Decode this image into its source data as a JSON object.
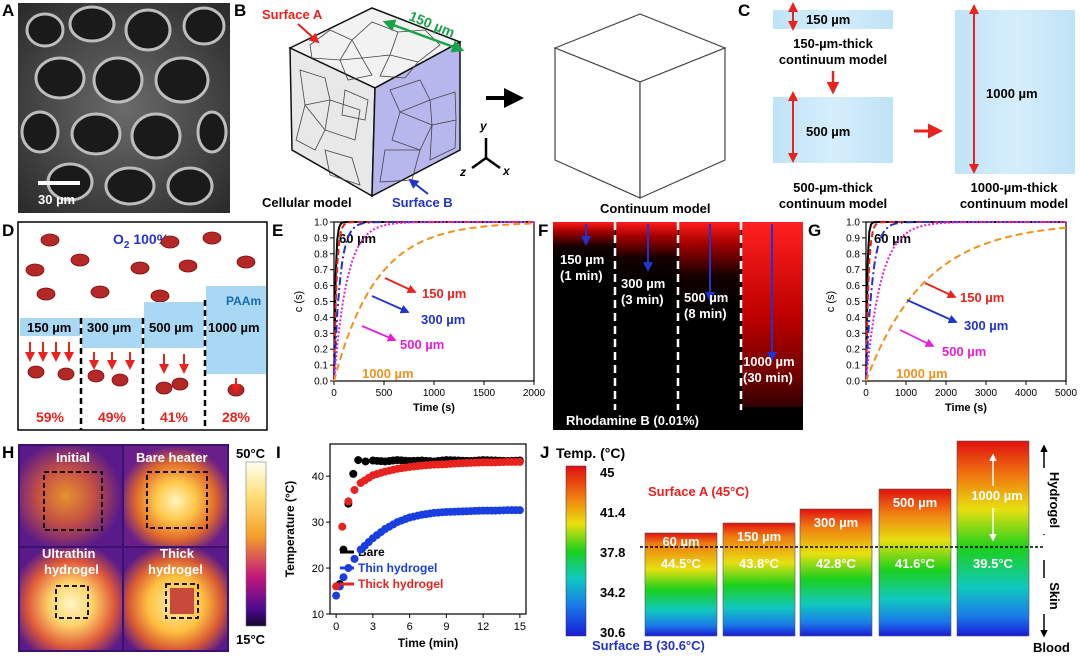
{
  "panels": {
    "A": {
      "letter": "A",
      "scale_bar": "30 µm"
    },
    "B": {
      "letter": "B",
      "surface_a": "Surface A",
      "surface_b": "Surface B",
      "dimension": "150 µm",
      "axis_y": "y",
      "axis_x": "x",
      "axis_z": "z",
      "cellular_label": "Cellular model",
      "continuum_label": "Continuum model"
    },
    "C": {
      "letter": "C",
      "thin_dim": "150 µm",
      "thin_label_1": "150-µm-thick",
      "thin_label_2": "continuum model",
      "mid_dim": "500 µm",
      "mid_label_1": "500-µm-thick",
      "mid_label_2": "continuum model",
      "thick_dim": "1000 µm",
      "thick_label_1": "1000-µm-thick",
      "thick_label_2": "continuum model"
    },
    "D": {
      "letter": "D",
      "o2_prefix": "O",
      "o2_sub": "2",
      "o2_suffix": " 100%",
      "paam": "PAAm",
      "layers": [
        "150 µm",
        "300 µm",
        "500 µm",
        "1000 µm"
      ],
      "percents": [
        "59%",
        "49%",
        "41%",
        "28%"
      ]
    },
    "F": {
      "letter": "F",
      "stains": [
        [
          "150 µm",
          "(1 min)"
        ],
        [
          "300 µm",
          "(3 min)"
        ],
        [
          "500 µm",
          "(8 min)"
        ],
        [
          "1000 µm",
          "(30 min)"
        ]
      ],
      "caption": "Rhodamine B (0.01%)"
    },
    "H": {
      "letter": "H",
      "initial": "Initial",
      "bare_heater": "Bare heater",
      "ultrathin_1": "Ultrathin",
      "ultrathin_2": "hydrogel",
      "thick_1": "Thick",
      "thick_2": "hydrogel",
      "scale_max": "50°C",
      "scale_min": "15°C"
    },
    "J": {
      "letter": "J",
      "temp_title": "Temp. (°C)",
      "scale_ticks": [
        "45",
        "41.4",
        "37.8",
        "34.2",
        "30.6"
      ],
      "surface_a": "Surface A (45°C)",
      "surface_b": "Surface B (30.6°C)",
      "bars": [
        {
          "thickness": "60 µm",
          "temp": "44.5°C"
        },
        {
          "thickness": "150 µm",
          "temp": "43.8°C"
        },
        {
          "thickness": "300 µm",
          "temp": "42.8°C"
        },
        {
          "thickness": "500 µm",
          "temp": "41.6°C"
        },
        {
          "thickness": "1000 µm",
          "temp": "39.5°C"
        }
      ],
      "hydrogel": "Hydrogel",
      "skin": "Skin",
      "blood": "Blood"
    }
  },
  "chart_data": [
    {
      "id": "E",
      "type": "line",
      "title": "",
      "xlabel": "Time (s)",
      "ylabel": "c (s)",
      "xlim": [
        0,
        2000
      ],
      "ylim": [
        0,
        1.0
      ],
      "xticks": [
        "0",
        "500",
        "1000",
        "1500",
        "2000"
      ],
      "yticks": [
        "0.0",
        "0.1",
        "0.2",
        "0.3",
        "0.4",
        "0.5",
        "0.6",
        "0.7",
        "0.8",
        "0.9",
        "1.0"
      ],
      "series": [
        {
          "name": "60 µm",
          "color": "#000000",
          "tau": 15
        },
        {
          "name": "150 µm",
          "color": "#e8231e",
          "tau": 25
        },
        {
          "name": "300 µm",
          "color": "#2233cc",
          "tau": 60
        },
        {
          "name": "500 µm",
          "color": "#e61fd6",
          "tau": 130
        },
        {
          "name": "1000 µm",
          "color": "#f0921e",
          "tau": 420
        }
      ]
    },
    {
      "id": "G",
      "type": "line",
      "title": "",
      "xlabel": "Time (s)",
      "ylabel": "c (s)",
      "xlim": [
        0,
        5000
      ],
      "ylim": [
        0,
        1.0
      ],
      "xticks": [
        "0",
        "1000",
        "2000",
        "3000",
        "4000",
        "5000"
      ],
      "yticks": [
        "0.0",
        "0.1",
        "0.2",
        "0.3",
        "0.4",
        "0.5",
        "0.6",
        "0.7",
        "0.8",
        "0.9",
        "1.0"
      ],
      "series": [
        {
          "name": "60 µm",
          "color": "#000000",
          "tau": 30
        },
        {
          "name": "150 µm",
          "color": "#e8231e",
          "tau": 60
        },
        {
          "name": "300 µm",
          "color": "#2233cc",
          "tau": 160
        },
        {
          "name": "500 µm",
          "color": "#e61fd6",
          "tau": 380
        },
        {
          "name": "1000 µm",
          "color": "#f0921e",
          "tau": 1500
        }
      ]
    },
    {
      "id": "I",
      "type": "scatter",
      "title": "",
      "xlabel": "Time (min)",
      "ylabel": "Temperature (°C)",
      "xlim": [
        -0.5,
        15.5
      ],
      "ylim": [
        10,
        47
      ],
      "xticks": [
        "0",
        "3",
        "6",
        "9",
        "12",
        "15"
      ],
      "yticks": [
        "10",
        "20",
        "30",
        "40"
      ],
      "series": [
        {
          "name": "Bare",
          "color": "#000000",
          "x": [
            0.3,
            0.6,
            1.0,
            1.4,
            1.8,
            2.4,
            3,
            4,
            5,
            6,
            7,
            8,
            9,
            10,
            11,
            12,
            13,
            14,
            15
          ],
          "y": [
            16.5,
            24,
            34,
            40.5,
            43.5,
            43.2,
            43.4,
            43.2,
            43.5,
            43.3,
            43.4,
            43.2,
            43.5,
            43.4,
            43.3,
            43.5,
            43.4,
            43.3,
            43.4
          ]
        },
        {
          "name": "Thin hydrogel",
          "color": "#1a3fe0",
          "x": [
            0,
            0.3,
            0.6,
            1,
            1.5,
            2,
            3,
            4,
            5,
            6,
            7,
            8,
            9,
            10,
            11,
            12,
            13,
            14,
            15
          ],
          "y": [
            14,
            16,
            18,
            20,
            22,
            24,
            26.5,
            28.5,
            30,
            31,
            31.6,
            32,
            32.2,
            32.3,
            32.4,
            32.5,
            32.5,
            32.6,
            32.6
          ]
        },
        {
          "name": "Thick hydrogel",
          "color": "#e8231e",
          "x": [
            0,
            0.5,
            1,
            1.5,
            2,
            3,
            4,
            5,
            6,
            7,
            8,
            9,
            10,
            11,
            12,
            13,
            14,
            15
          ],
          "y": [
            16,
            29,
            34.5,
            37,
            38.5,
            40.2,
            41,
            41.6,
            42,
            42.3,
            42.5,
            42.6,
            42.8,
            42.9,
            43,
            43,
            43.1,
            43.1
          ]
        }
      ]
    }
  ]
}
